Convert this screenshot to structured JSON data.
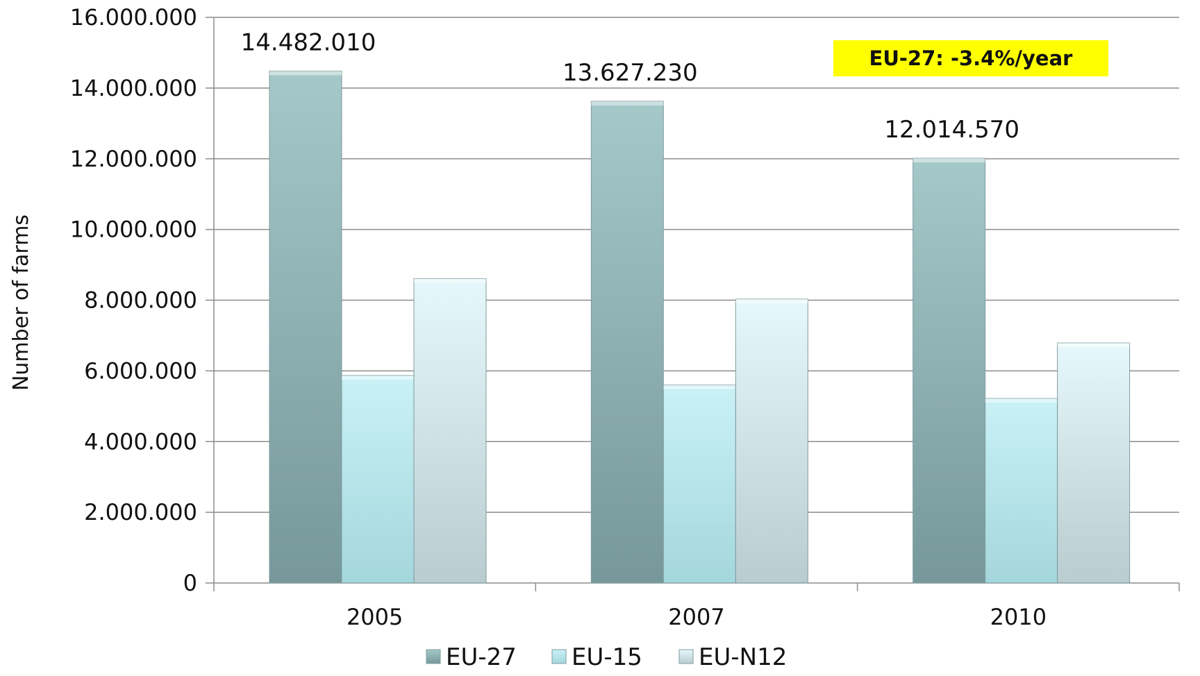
{
  "chart_data": {
    "type": "bar",
    "title": "",
    "xlabel": "",
    "ylabel": "Number of farms",
    "categories": [
      "2005",
      "2007",
      "2010"
    ],
    "series": [
      {
        "name": "EU-27",
        "values": [
          14482010,
          13627230,
          12014570
        ],
        "color": "#8fb4b6"
      },
      {
        "name": "EU-15",
        "values": [
          5870000,
          5600000,
          5220000
        ],
        "color": "#a9e1e8"
      },
      {
        "name": "EU-N12",
        "values": [
          8610000,
          8030000,
          6790000
        ],
        "color": "#cde7ec"
      }
    ],
    "data_labels": [
      {
        "series": "EU-27",
        "category": "2005",
        "text": "14.482.010"
      },
      {
        "series": "EU-27",
        "category": "2007",
        "text": "13.627.230"
      },
      {
        "series": "EU-27",
        "category": "2010",
        "text": "12.014.570"
      }
    ],
    "ylim": [
      0,
      16000000
    ],
    "yticks": [
      0,
      2000000,
      4000000,
      6000000,
      8000000,
      10000000,
      12000000,
      14000000,
      16000000
    ],
    "ytick_labels": [
      "0",
      "2.000.000",
      "4.000.000",
      "6.000.000",
      "8.000.000",
      "10.000.000",
      "12.000.000",
      "14.000.000",
      "16.000.000"
    ],
    "grid": true,
    "legend_position": "bottom",
    "annotation": {
      "text": "EU-27: -3.4%/year",
      "background": "#ffff00"
    }
  }
}
